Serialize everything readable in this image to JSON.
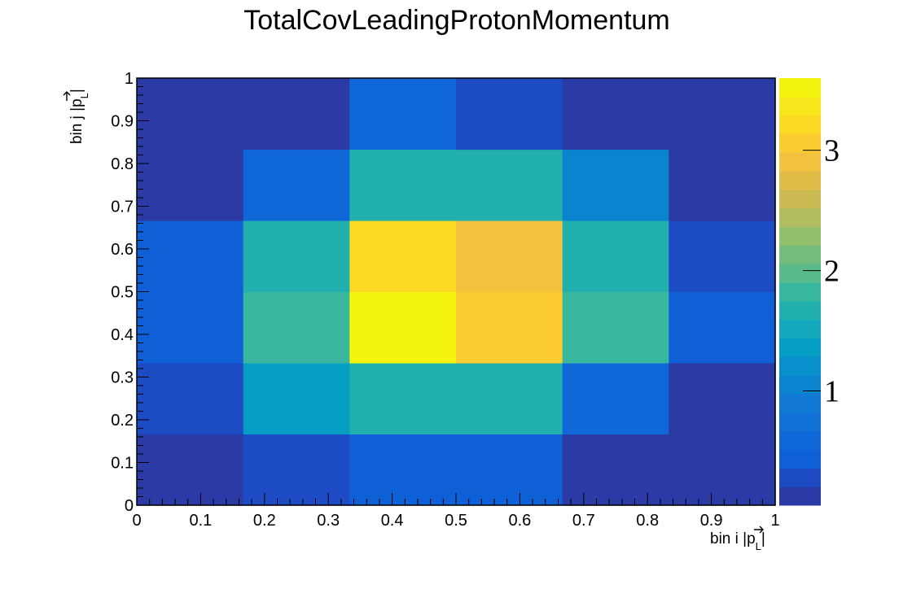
{
  "chart_data": {
    "type": "heatmap",
    "title": "TotalCovLeadingProtonMomentum",
    "xlabel": {
      "text": "bin i |",
      "symbol": "p",
      "subscript": "L",
      "close": "|"
    },
    "ylabel": {
      "text": "bin j |",
      "symbol": "p",
      "subscript": "L",
      "close": "|"
    },
    "xlim": [
      0,
      1
    ],
    "ylim": [
      0,
      1
    ],
    "x_edges": [
      0,
      0.1667,
      0.3333,
      0.5,
      0.6667,
      0.8333,
      1
    ],
    "y_edges": [
      0,
      0.1667,
      0.3333,
      0.5,
      0.6667,
      0.8333,
      1
    ],
    "x_ticks": [
      "0",
      "0.1",
      "0.2",
      "0.3",
      "0.4",
      "0.5",
      "0.6",
      "0.7",
      "0.8",
      "0.9",
      "1"
    ],
    "y_ticks": [
      "0",
      "0.1",
      "0.2",
      "0.3",
      "0.4",
      "0.5",
      "0.6",
      "0.7",
      "0.8",
      "0.9",
      "1"
    ],
    "z_values": [
      [
        0.1,
        0.25,
        0.45,
        0.45,
        0.1,
        0.1
      ],
      [
        0.25,
        1.3,
        1.7,
        1.6,
        0.65,
        0.1
      ],
      [
        0.5,
        1.75,
        3.6,
        3.1,
        1.75,
        0.5
      ],
      [
        0.5,
        1.6,
        3.2,
        2.9,
        1.6,
        0.25
      ],
      [
        0.1,
        0.65,
        1.7,
        1.6,
        1.1,
        0.1
      ],
      [
        0.1,
        0.1,
        0.55,
        0.35,
        0.1,
        0.1
      ]
    ],
    "z_range": [
      0.05,
      3.6
    ],
    "palette_ticks": [
      {
        "value": 1,
        "label": "1"
      },
      {
        "value": 2,
        "label": "2"
      },
      {
        "value": 3,
        "label": "3"
      }
    ],
    "palette_colors": [
      "#2b3aa4",
      "#1c4bc4",
      "#0f5fd6",
      "#1068d8",
      "#1171d6",
      "#1178d4",
      "#0b84d0",
      "#0990cc",
      "#079ec6",
      "#14a8bc",
      "#22b0ae",
      "#39b79e",
      "#57bb8c",
      "#74bd7c",
      "#93bf6c",
      "#b1bd5e",
      "#ccbb52",
      "#e2bc48",
      "#f2c13e",
      "#fbcb31",
      "#fbd924",
      "#f6e81c",
      "#f5f40f"
    ]
  }
}
